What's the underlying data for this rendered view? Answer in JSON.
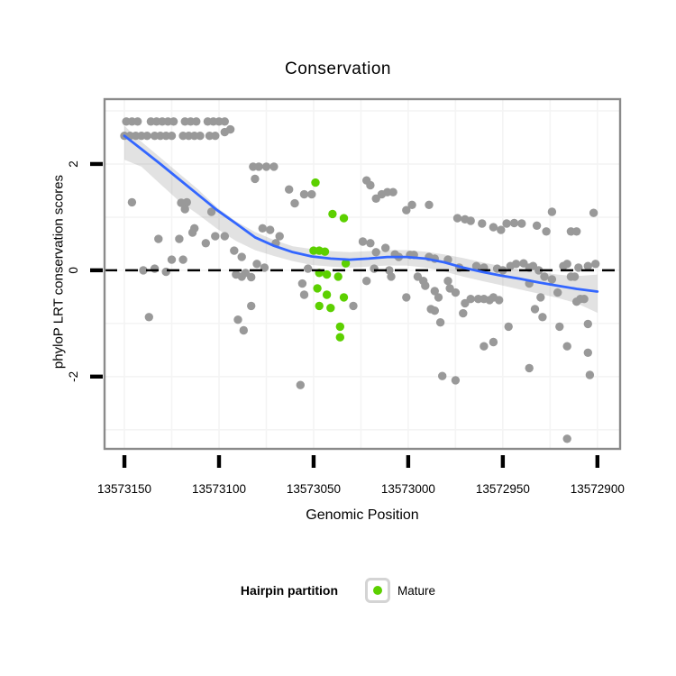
{
  "chart_data": {
    "type": "scatter",
    "title": "Conservation",
    "xlabel": "Genomic Position",
    "ylabel": "phyloP LRT conservation scores",
    "x_reversed": true,
    "x_domain": [
      13573160.5,
      13572888.0
    ],
    "y_domain": [
      -3.36,
      3.22
    ],
    "x_ticks": [
      13573150,
      13573100,
      13573050,
      13573000,
      13572950,
      13572900
    ],
    "y_ticks": [
      2,
      0,
      -2
    ],
    "grid_x": [
      13573150,
      13573125,
      13573100,
      13573075,
      13573050,
      13573025,
      13573000,
      13572975,
      13572950,
      13572925,
      13572900
    ],
    "grid_y": [
      3,
      2,
      1,
      0,
      -1,
      -2,
      -3
    ],
    "zero_line": {
      "y": 0,
      "style": "dashed",
      "color": "#000000"
    },
    "colors": {
      "other_points": "#999999",
      "mature_points": "#5CD000",
      "smooth_line": "#3366FF",
      "ribbon": "rgba(125,125,125,0.22)",
      "panel_border": "#8a8a8a",
      "grid": "#f4f4f4",
      "tick": "#000000"
    },
    "legend": {
      "title": "Hairpin partition",
      "position": "bottom",
      "items": [
        {
          "label": "Mature",
          "color": "#5CD000"
        }
      ]
    },
    "series": [
      {
        "name": "other",
        "color": "#999999",
        "points": [
          [
            13573149,
            2.8
          ],
          [
            13573146,
            2.8
          ],
          [
            13573143,
            2.8
          ],
          [
            13573136,
            2.8
          ],
          [
            13573133,
            2.8
          ],
          [
            13573130,
            2.8
          ],
          [
            13573127,
            2.8
          ],
          [
            13573124,
            2.8
          ],
          [
            13573118,
            2.8
          ],
          [
            13573115,
            2.8
          ],
          [
            13573112,
            2.8
          ],
          [
            13573106,
            2.8
          ],
          [
            13573103,
            2.8
          ],
          [
            13573100,
            2.8
          ],
          [
            13573097,
            2.8
          ],
          [
            13573150,
            2.53
          ],
          [
            13573147,
            2.53
          ],
          [
            13573144,
            2.53
          ],
          [
            13573141,
            2.53
          ],
          [
            13573138,
            2.53
          ],
          [
            13573134,
            2.53
          ],
          [
            13573131,
            2.53
          ],
          [
            13573128,
            2.53
          ],
          [
            13573125,
            2.53
          ],
          [
            13573119,
            2.53
          ],
          [
            13573116,
            2.53
          ],
          [
            13573113,
            2.53
          ],
          [
            13573110,
            2.53
          ],
          [
            13573105,
            2.53
          ],
          [
            13573102,
            2.53
          ],
          [
            13573097,
            2.6
          ],
          [
            13573094,
            2.65
          ],
          [
            13573082,
            1.95
          ],
          [
            13573079,
            1.95
          ],
          [
            13573075,
            1.95
          ],
          [
            13573071,
            1.95
          ],
          [
            13573081,
            1.72
          ],
          [
            13573146,
            1.28
          ],
          [
            13573120,
            1.27
          ],
          [
            13573117,
            1.28
          ],
          [
            13573118,
            1.15
          ],
          [
            13573104,
            1.1
          ],
          [
            13573113,
            0.79
          ],
          [
            13573077,
            0.79
          ],
          [
            13573073,
            0.76
          ],
          [
            13573068,
            0.64
          ],
          [
            13573070,
            0.51
          ],
          [
            13573107,
            0.51
          ],
          [
            13573097,
            0.64
          ],
          [
            13573132,
            0.59
          ],
          [
            13573121,
            0.59
          ],
          [
            13573114,
            0.71
          ],
          [
            13573102,
            0.64
          ],
          [
            13573140,
            0.0
          ],
          [
            13573134,
            0.03
          ],
          [
            13573128,
            -0.03
          ],
          [
            13573125,
            0.2
          ],
          [
            13573119,
            0.2
          ],
          [
            13573137,
            -0.88
          ],
          [
            13573063,
            1.52
          ],
          [
            13573055,
            1.43
          ],
          [
            13573051,
            1.43
          ],
          [
            13573060,
            1.26
          ],
          [
            13573092,
            0.37
          ],
          [
            13573088,
            0.25
          ],
          [
            13573091,
            -0.08
          ],
          [
            13573088,
            -0.12
          ],
          [
            13573086,
            -0.05
          ],
          [
            13573083,
            -0.13
          ],
          [
            13573080,
            0.12
          ],
          [
            13573076,
            0.05
          ],
          [
            13573090,
            -0.93
          ],
          [
            13573087,
            -1.13
          ],
          [
            13573083,
            -0.67
          ],
          [
            13573057,
            -2.16
          ],
          [
            13573053,
            0.03
          ],
          [
            13573056,
            -0.25
          ],
          [
            13573055,
            -0.46
          ],
          [
            13573029,
            -0.67
          ],
          [
            13573022,
            -0.2
          ],
          [
            13573022,
            1.69
          ],
          [
            13573020,
            1.6
          ],
          [
            13573017,
            1.35
          ],
          [
            13573014,
            1.43
          ],
          [
            13573011,
            1.47
          ],
          [
            13573008,
            1.47
          ],
          [
            13573001,
            1.13
          ],
          [
            13572998,
            1.23
          ],
          [
            13572989,
            1.23
          ],
          [
            13572974,
            0.98
          ],
          [
            13572970,
            0.96
          ],
          [
            13572967,
            0.93
          ],
          [
            13572961,
            0.88
          ],
          [
            13572955,
            0.81
          ],
          [
            13572951,
            0.76
          ],
          [
            13572948,
            0.88
          ],
          [
            13572944,
            0.89
          ],
          [
            13572940,
            0.88
          ],
          [
            13572932,
            0.84
          ],
          [
            13572927,
            0.73
          ],
          [
            13572924,
            1.1
          ],
          [
            13572914,
            0.73
          ],
          [
            13572911,
            0.73
          ],
          [
            13572902,
            1.08
          ],
          [
            13573024,
            0.54
          ],
          [
            13573020,
            0.51
          ],
          [
            13573017,
            0.34
          ],
          [
            13573012,
            0.42
          ],
          [
            13573007,
            0.3
          ],
          [
            13573005,
            0.25
          ],
          [
            13572999,
            0.29
          ],
          [
            13572997,
            0.29
          ],
          [
            13572989,
            0.25
          ],
          [
            13572986,
            0.22
          ],
          [
            13572979,
            0.2
          ],
          [
            13572973,
            0.05
          ],
          [
            13572964,
            0.08
          ],
          [
            13572960,
            0.05
          ],
          [
            13572953,
            0.03
          ],
          [
            13572950,
            0.0
          ],
          [
            13572946,
            0.08
          ],
          [
            13572943,
            0.12
          ],
          [
            13572939,
            0.13
          ],
          [
            13572936,
            0.05
          ],
          [
            13572934,
            0.08
          ],
          [
            13572931,
            0.0
          ],
          [
            13572918,
            0.08
          ],
          [
            13572916,
            0.12
          ],
          [
            13572910,
            0.05
          ],
          [
            13572905,
            0.08
          ],
          [
            13572901,
            0.12
          ],
          [
            13573018,
            0.03
          ],
          [
            13573010,
            0.0
          ],
          [
            13573009,
            -0.12
          ],
          [
            13572995,
            -0.12
          ],
          [
            13572992,
            -0.2
          ],
          [
            13572991,
            -0.29
          ],
          [
            13573001,
            -0.51
          ],
          [
            13572986,
            -0.39
          ],
          [
            13572984,
            -0.51
          ],
          [
            13572979,
            -0.2
          ],
          [
            13572978,
            -0.34
          ],
          [
            13572975,
            -0.42
          ],
          [
            13572970,
            -0.62
          ],
          [
            13572967,
            -0.54
          ],
          [
            13572963,
            -0.54
          ],
          [
            13572960,
            -0.54
          ],
          [
            13572957,
            -0.56
          ],
          [
            13572955,
            -0.51
          ],
          [
            13572952,
            -0.56
          ],
          [
            13572986,
            -0.76
          ],
          [
            13572983,
            -0.98
          ],
          [
            13572988,
            -0.73
          ],
          [
            13572971,
            -0.81
          ],
          [
            13572947,
            -1.06
          ],
          [
            13572936,
            -0.25
          ],
          [
            13572930,
            -0.51
          ],
          [
            13572929,
            -0.88
          ],
          [
            13572928,
            -0.12
          ],
          [
            13572924,
            -0.17
          ],
          [
            13572921,
            -0.42
          ],
          [
            13572920,
            -1.06
          ],
          [
            13572914,
            -0.12
          ],
          [
            13572912,
            -0.12
          ],
          [
            13572911,
            -0.59
          ],
          [
            13572909,
            -0.54
          ],
          [
            13572907,
            -0.54
          ],
          [
            13572933,
            -0.73
          ],
          [
            13572905,
            -1.01
          ],
          [
            13572982,
            -1.99
          ],
          [
            13572975,
            -2.07
          ],
          [
            13572960,
            -1.43
          ],
          [
            13572955,
            -1.35
          ],
          [
            13572916,
            -1.43
          ],
          [
            13572905,
            -1.55
          ],
          [
            13572904,
            -1.97
          ],
          [
            13572936,
            -1.84
          ],
          [
            13572916,
            -3.17
          ]
        ]
      },
      {
        "name": "Mature",
        "color": "#5CD000",
        "points": [
          [
            13573049,
            1.65
          ],
          [
            13573040,
            1.06
          ],
          [
            13573034,
            0.98
          ],
          [
            13573050,
            0.37
          ],
          [
            13573047,
            0.37
          ],
          [
            13573044,
            0.35
          ],
          [
            13573033,
            0.13
          ],
          [
            13573047,
            -0.05
          ],
          [
            13573043,
            -0.08
          ],
          [
            13573037,
            -0.12
          ],
          [
            13573048,
            -0.34
          ],
          [
            13573043,
            -0.46
          ],
          [
            13573034,
            -0.51
          ],
          [
            13573047,
            -0.67
          ],
          [
            13573041,
            -0.71
          ],
          [
            13573036,
            -1.06
          ],
          [
            13573036,
            -1.26
          ]
        ]
      }
    ],
    "smooth": {
      "color": "#3366FF",
      "points": [
        [
          13573150,
          2.53
        ],
        [
          13573141,
          2.28
        ],
        [
          13573131,
          2.0
        ],
        [
          13573121,
          1.71
        ],
        [
          13573111,
          1.42
        ],
        [
          13573101,
          1.13
        ],
        [
          13573091,
          0.88
        ],
        [
          13573081,
          0.62
        ],
        [
          13573071,
          0.46
        ],
        [
          13573061,
          0.34
        ],
        [
          13573051,
          0.26
        ],
        [
          13573041,
          0.22
        ],
        [
          13573031,
          0.2
        ],
        [
          13573021,
          0.22
        ],
        [
          13573011,
          0.25
        ],
        [
          13573001,
          0.25
        ],
        [
          13572991,
          0.22
        ],
        [
          13572981,
          0.15
        ],
        [
          13572971,
          0.05
        ],
        [
          13572961,
          -0.03
        ],
        [
          13572951,
          -0.1
        ],
        [
          13572941,
          -0.16
        ],
        [
          13572931,
          -0.23
        ],
        [
          13572921,
          -0.29
        ],
        [
          13572911,
          -0.35
        ],
        [
          13572900,
          -0.4
        ]
      ],
      "ribbon": [
        [
          13573150,
          2.08,
          2.72
        ],
        [
          13573141,
          1.95,
          2.42
        ],
        [
          13573131,
          1.62,
          2.12
        ],
        [
          13573121,
          1.3,
          1.82
        ],
        [
          13573111,
          1.05,
          1.52
        ],
        [
          13573101,
          0.78,
          1.18
        ],
        [
          13573091,
          0.55,
          0.92
        ],
        [
          13573081,
          0.38,
          0.72
        ],
        [
          13573071,
          0.27,
          0.57
        ],
        [
          13573061,
          0.17,
          0.45
        ],
        [
          13573051,
          0.1,
          0.4
        ],
        [
          13573041,
          0.07,
          0.36
        ],
        [
          13573031,
          0.05,
          0.34
        ],
        [
          13573021,
          0.07,
          0.36
        ],
        [
          13573011,
          0.09,
          0.38
        ],
        [
          13573001,
          0.09,
          0.38
        ],
        [
          13572991,
          0.05,
          0.35
        ],
        [
          13572981,
          -0.02,
          0.3
        ],
        [
          13572971,
          -0.12,
          0.23
        ],
        [
          13572961,
          -0.2,
          0.15
        ],
        [
          13572951,
          -0.28,
          0.08
        ],
        [
          13572941,
          -0.36,
          0.02
        ],
        [
          13572931,
          -0.44,
          -0.03
        ],
        [
          13572921,
          -0.52,
          -0.08
        ],
        [
          13572911,
          -0.62,
          -0.11
        ],
        [
          13572900,
          -0.8,
          -0.08
        ]
      ]
    }
  }
}
